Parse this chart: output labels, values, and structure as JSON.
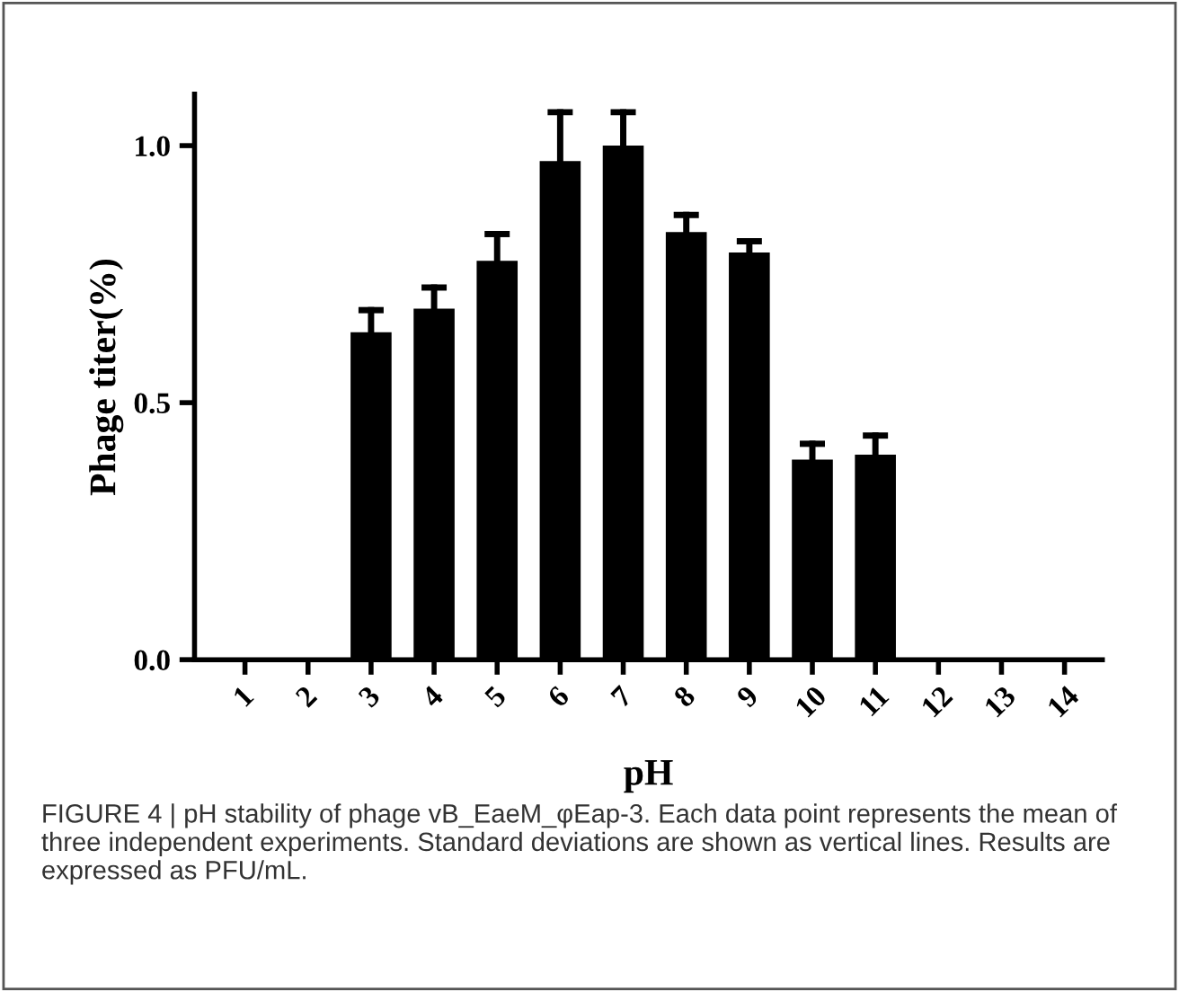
{
  "chart_data": {
    "type": "bar",
    "categories": [
      "1",
      "2",
      "3",
      "4",
      "5",
      "6",
      "7",
      "8",
      "9",
      "10",
      "11",
      "12",
      "13",
      "14"
    ],
    "values": [
      0,
      0,
      0.637,
      0.683,
      0.776,
      0.97,
      1.0,
      0.832,
      0.792,
      0.389,
      0.399,
      0,
      0,
      0
    ],
    "errors": [
      null,
      null,
      [
        0.637,
        0.68
      ],
      [
        0.683,
        0.724
      ],
      [
        0.776,
        0.828
      ],
      [
        0.97,
        1.065
      ],
      [
        1.0,
        1.065
      ],
      [
        0.832,
        0.865
      ],
      [
        0.792,
        0.814
      ],
      [
        0.389,
        0.42
      ],
      [
        0.399,
        0.436
      ],
      null,
      null,
      null
    ],
    "color": "#000000",
    "xlabel": "pH",
    "ylabel": "Phage titer(%)",
    "ylim": [
      0,
      1.1
    ],
    "yticks": [
      {
        "value": 0,
        "label": "0.0"
      },
      {
        "value": 0.5,
        "label": "0.5"
      },
      {
        "value": 1.0,
        "label": "1.0"
      }
    ],
    "grid": false,
    "legend": false,
    "annotations": [
      "FIGURE 4 | pH stability of phage vB_EaeM_φEap-3. Each data point represents the mean of three independent experiments. Standard deviations are shown as vertical lines. Results are expressed as PFU/mL."
    ]
  }
}
